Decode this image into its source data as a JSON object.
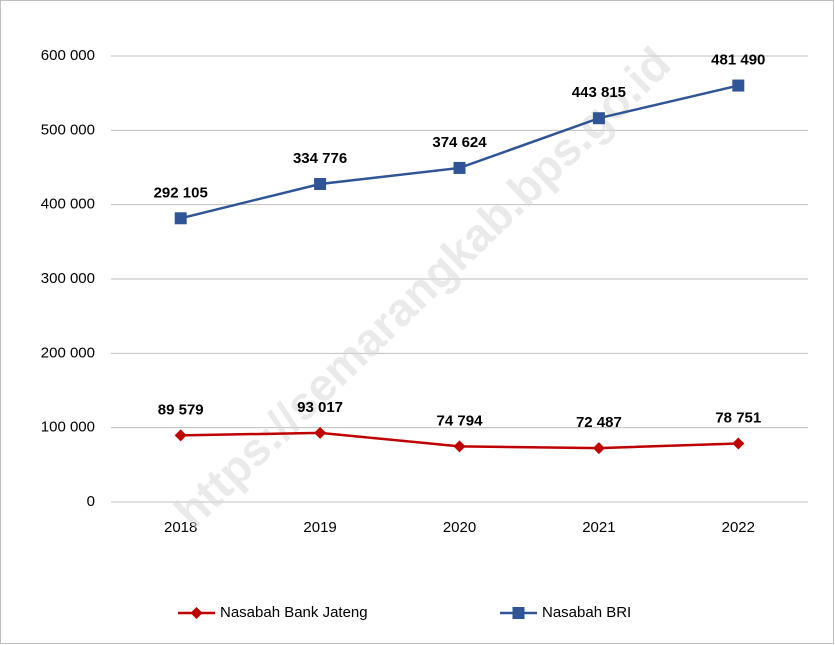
{
  "chart_data": {
    "type": "line",
    "stacked": true,
    "watermark": "https://semarangkab.bps.go.id",
    "categories": [
      "2018",
      "2019",
      "2020",
      "2021",
      "2022"
    ],
    "series": [
      {
        "name": "Nasabah Bank Jateng",
        "color": "#c00000",
        "marker": "diamond",
        "values": [
          89579,
          93017,
          74794,
          72487,
          78751
        ],
        "value_labels": [
          "89 579",
          "93 017",
          "74 794",
          "72 487",
          "78 751"
        ]
      },
      {
        "name": "Nasabah BRI",
        "color": "#2f5597",
        "marker": "square",
        "values": [
          292105,
          334776,
          374624,
          443815,
          481490
        ],
        "value_labels": [
          "292 105",
          "334 776",
          "374 624",
          "443 815",
          "481 490"
        ]
      }
    ],
    "ylim": [
      0,
      600000
    ],
    "yticks": [
      0,
      {
        "value": 100000,
        "label": "100 000"
      },
      {
        "value": 200000,
        "label": "200 000"
      },
      {
        "value": 300000,
        "label": "300 000"
      },
      {
        "value": 400000,
        "label": "400 000"
      },
      {
        "value": 500000,
        "label": "500 000"
      },
      {
        "value": 600000,
        "label": "600 000"
      }
    ],
    "grid": true,
    "legend": "bottom"
  }
}
